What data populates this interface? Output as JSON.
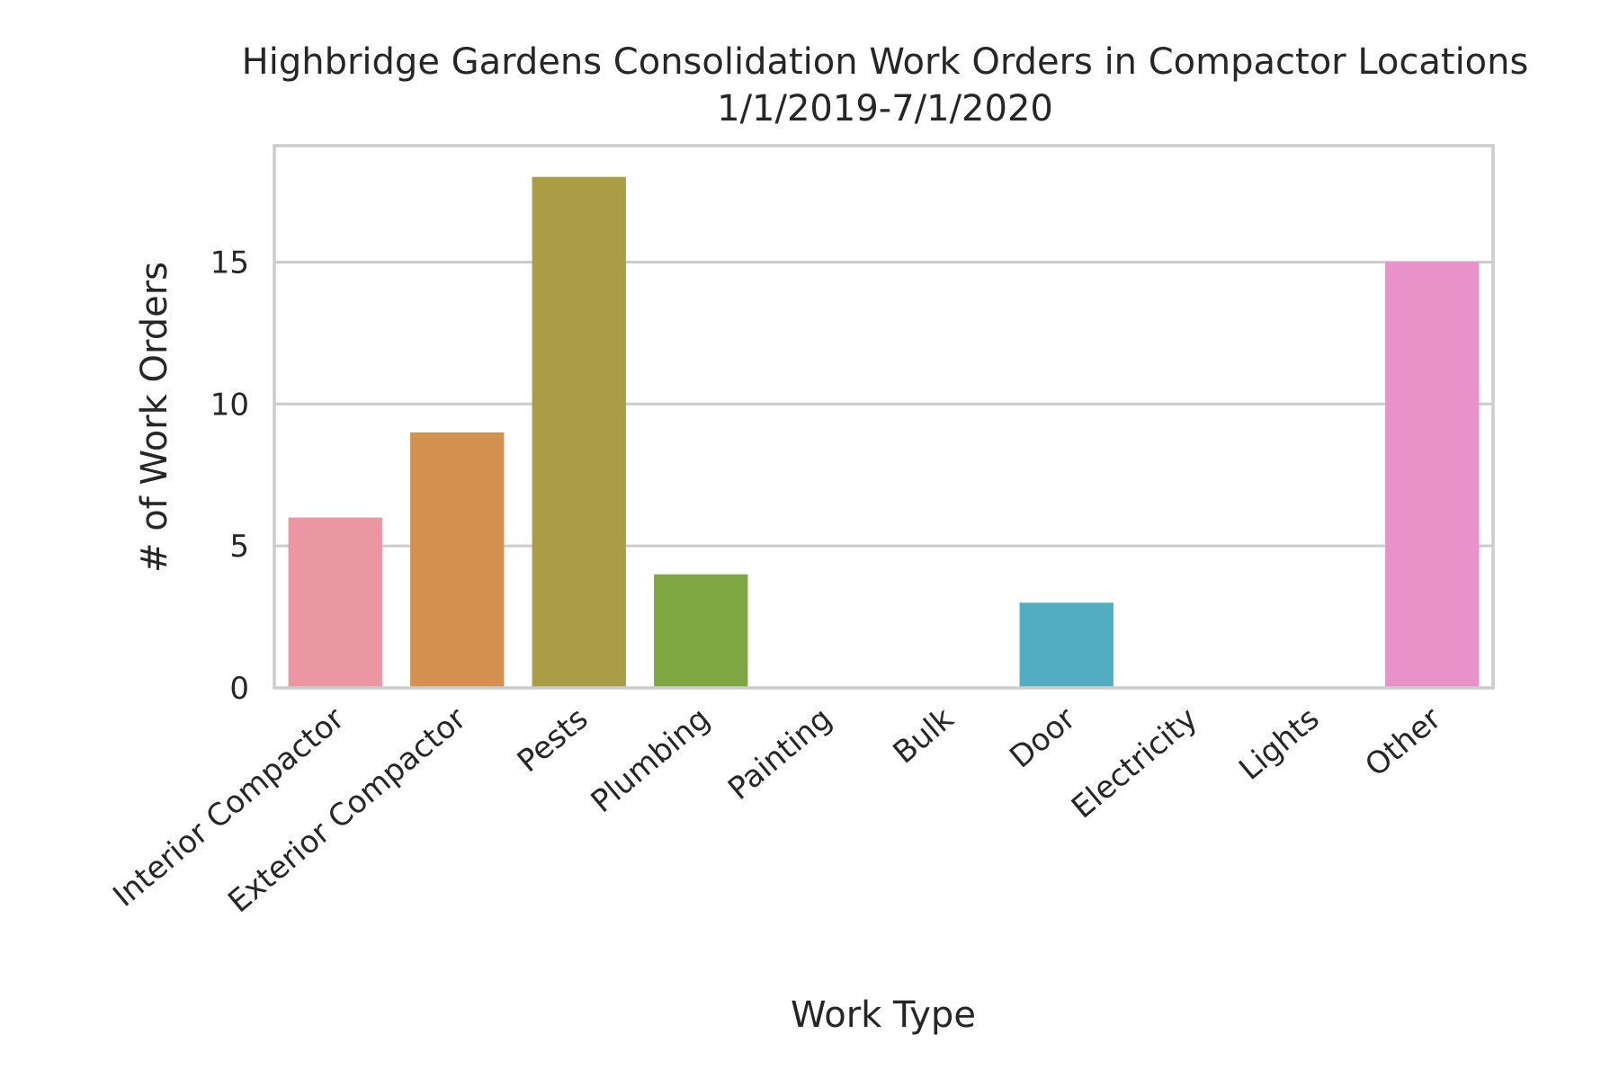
{
  "chart_data": {
    "type": "bar",
    "title": "Highbridge Gardens Consolidation Work Orders in Compactor Locations",
    "subtitle": "1/1/2019-7/1/2020",
    "xlabel": "Work Type",
    "ylabel": "# of Work Orders",
    "categories": [
      "Interior Compactor",
      "Exterior Compactor",
      "Pests",
      "Plumbing",
      "Painting",
      "Bulk",
      "Door",
      "Electricity",
      "Lights",
      "Other"
    ],
    "values": [
      6,
      9,
      18,
      4,
      0,
      0,
      3,
      0,
      0,
      15
    ],
    "colors": [
      "#ea96a3",
      "#d39150",
      "#aa9d46",
      "#7fa845",
      "#50af8c",
      "#53ab9e",
      "#52acc2",
      "#8ca4de",
      "#d493de",
      "#e991c9"
    ],
    "ylim": [
      0,
      19.1
    ],
    "yticks": [
      0,
      5,
      10,
      15
    ],
    "grid": true,
    "legend": "none"
  }
}
